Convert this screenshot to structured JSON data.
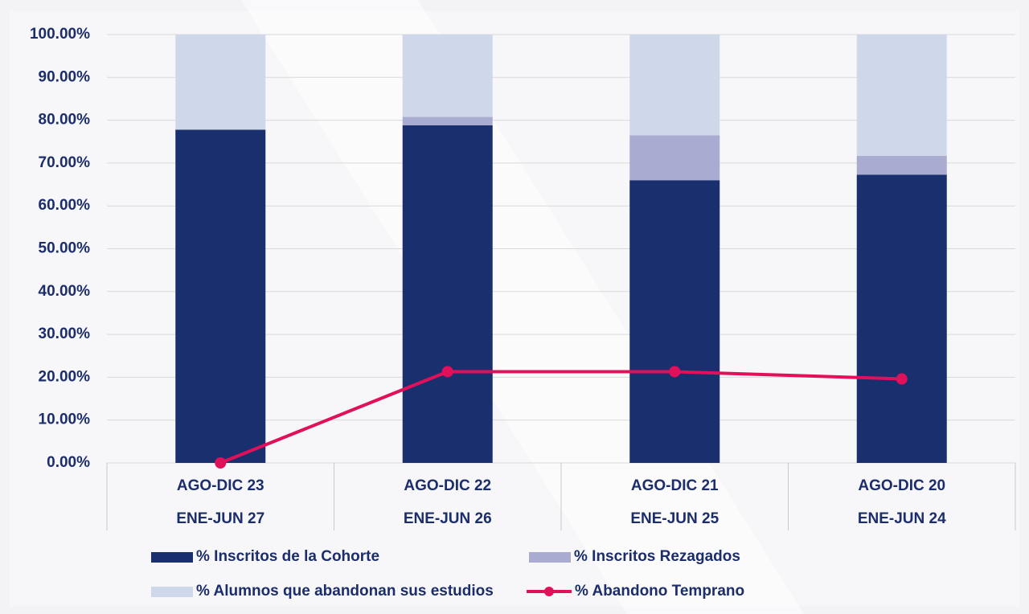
{
  "chart_data": {
    "type": "stacked-bar-line",
    "categories": [
      [
        "AGO-DIC 23",
        "ENE-JUN 27"
      ],
      [
        "AGO-DIC 22",
        "ENE-JUN 26"
      ],
      [
        "AGO-DIC 21",
        "ENE-JUN 25"
      ],
      [
        "AGO-DIC 20",
        "ENE-JUN 24"
      ]
    ],
    "series": [
      {
        "name": "% Inscritos de la Cohorte",
        "color": "#1a2f6e",
        "kind": "bar",
        "values": [
          77.8,
          78.8,
          66.0,
          67.3
        ]
      },
      {
        "name": "% Inscritos Rezagados",
        "color": "#a9acd0",
        "kind": "bar",
        "values": [
          0,
          2.0,
          10.5,
          4.4
        ]
      },
      {
        "name": "% Alumnos que abandonan sus estudios",
        "color": "#cfd8ea",
        "kind": "bar",
        "values": [
          22.2,
          19.2,
          23.5,
          28.3
        ]
      },
      {
        "name": "% Abandono Temprano",
        "color": "#e0105a",
        "kind": "line",
        "values": [
          0,
          21.3,
          21.3,
          19.6
        ]
      }
    ],
    "ylim": [
      0,
      100
    ],
    "yticks": [
      {
        "value": 0,
        "label": "0.00%"
      },
      {
        "value": 10,
        "label": "10.00%"
      },
      {
        "value": 20,
        "label": "20.00%"
      },
      {
        "value": 30,
        "label": "30.00%"
      },
      {
        "value": 40,
        "label": "40.00%"
      },
      {
        "value": 50,
        "label": "50.00%"
      },
      {
        "value": 60,
        "label": "60.00%"
      },
      {
        "value": 70,
        "label": "70.00%"
      },
      {
        "value": 80,
        "label": "80.00%"
      },
      {
        "value": 90,
        "label": "90.00%"
      },
      {
        "value": 100,
        "label": "100.00%"
      }
    ],
    "grid": true
  }
}
